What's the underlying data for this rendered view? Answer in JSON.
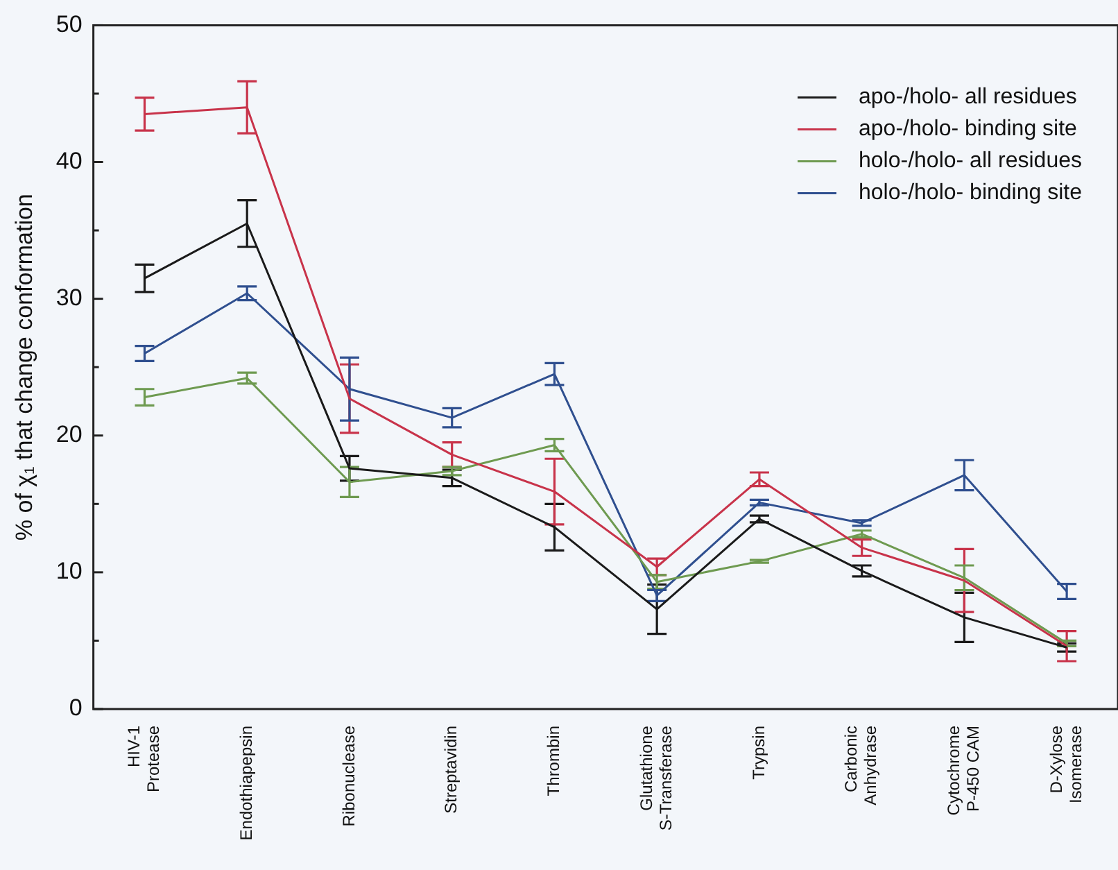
{
  "chart_data": {
    "type": "line",
    "ylabel": "% of χ₁ that change conformation",
    "categories": [
      "HIV-1\nProtease",
      "Endothiapepsin",
      "Ribonuclease",
      "Streptavidin",
      "Thrombin",
      "Glutathione\nS-Transferase",
      "Trypsin",
      "Carbonic\nAnhydrase",
      "Cytochrome\nP-450 CAM",
      "D-Xylose\nIsomerase"
    ],
    "series": [
      {
        "name": "apo-/holo- all residues",
        "color": "#1a1a1a",
        "values": [
          31.5,
          35.5,
          17.6,
          16.9,
          13.3,
          7.3,
          13.9,
          10.1,
          6.7,
          4.5
        ],
        "errors": [
          1.0,
          1.7,
          0.9,
          0.6,
          1.7,
          1.8,
          0.25,
          0.4,
          1.8,
          0.3
        ]
      },
      {
        "name": "apo-/holo- binding site",
        "color": "#c8334a",
        "values": [
          43.5,
          44.0,
          22.7,
          18.6,
          15.9,
          10.4,
          16.8,
          11.8,
          9.4,
          4.6
        ],
        "errors": [
          1.2,
          1.9,
          2.5,
          0.9,
          2.4,
          0.6,
          0.5,
          0.6,
          2.3,
          1.1
        ]
      },
      {
        "name": "holo-/holo- all residues",
        "color": "#6e9a50",
        "values": [
          22.8,
          24.2,
          16.6,
          17.4,
          19.3,
          9.3,
          10.8,
          12.8,
          9.6,
          4.8
        ],
        "errors": [
          0.6,
          0.4,
          1.1,
          0.3,
          0.45,
          0.5,
          0.1,
          0.25,
          0.9,
          0.2
        ]
      },
      {
        "name": "holo-/holo- binding site",
        "color": "#2f4f8f",
        "values": [
          26.0,
          30.4,
          23.4,
          21.3,
          24.5,
          8.3,
          15.1,
          13.6,
          17.1,
          8.6
        ],
        "errors": [
          0.55,
          0.5,
          2.3,
          0.7,
          0.8,
          0.4,
          0.2,
          0.2,
          1.1,
          0.55
        ]
      }
    ],
    "ylim": [
      0,
      50
    ],
    "yticks": [
      0,
      {
        "value": 5,
        "label": null
      },
      10,
      {
        "value": 15,
        "label": null
      },
      20,
      {
        "value": 25,
        "label": null
      },
      30,
      {
        "value": 35,
        "label": null
      },
      40,
      {
        "value": 45,
        "label": null
      },
      50
    ],
    "grid": false,
    "legend": "top right",
    "line_style": "solid"
  }
}
